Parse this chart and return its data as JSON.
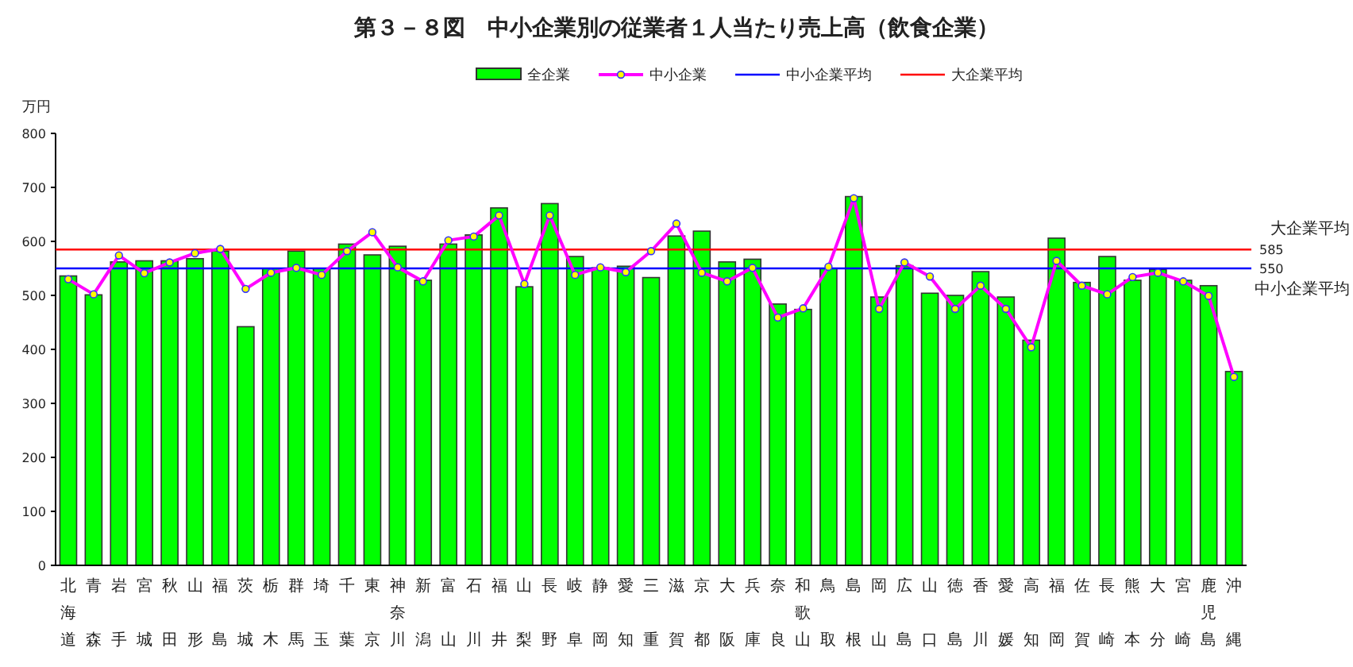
{
  "chart_data": {
    "type": "bar",
    "title": "第３－８図　中小企業別の従業者１人当たり売上高（飲食企業）",
    "ylabel": "万円",
    "categories": [
      "北海道",
      "青森",
      "岩手",
      "宮城",
      "秋田",
      "山形",
      "福島",
      "茨城",
      "栃木",
      "群馬",
      "埼玉",
      "千葉",
      "東京",
      "神奈川",
      "新潟",
      "富山",
      "石川",
      "福井",
      "山梨",
      "長野",
      "岐阜",
      "静岡",
      "愛知",
      "三重",
      "滋賀",
      "京都",
      "大阪",
      "兵庫",
      "奈良",
      "和歌山",
      "鳥取",
      "島根",
      "岡山",
      "広島",
      "山口",
      "徳島",
      "香川",
      "愛媛",
      "高知",
      "福岡",
      "佐賀",
      "長崎",
      "熊本",
      "大分",
      "宮崎",
      "鹿児島",
      "沖縄"
    ],
    "series": [
      {
        "name": "全企業",
        "color": "#00ff00",
        "values": [
          536,
          501,
          562,
          564,
          564,
          568,
          582,
          442,
          550,
          582,
          550,
          595,
          575,
          591,
          528,
          595,
          612,
          662,
          516,
          670,
          572,
          551,
          554,
          533,
          610,
          619,
          562,
          567,
          484,
          474,
          550,
          683,
          497,
          555,
          504,
          500,
          544,
          497,
          417,
          606,
          524,
          572,
          528,
          548,
          528,
          518,
          359
        ]
      },
      {
        "name": "中小企業",
        "type": "line",
        "color": "#ff00ff",
        "marker": "circle",
        "values": [
          530,
          502,
          574,
          541,
          561,
          578,
          586,
          512,
          542,
          551,
          538,
          582,
          617,
          552,
          526,
          602,
          609,
          648,
          521,
          648,
          538,
          552,
          543,
          582,
          633,
          542,
          526,
          551,
          459,
          476,
          553,
          680,
          475,
          561,
          535,
          475,
          518,
          475,
          404,
          564,
          518,
          502,
          534,
          542,
          526,
          499,
          349
        ]
      }
    ],
    "ref_lines": [
      {
        "axis": "y",
        "value": 585,
        "label": "大企業平均",
        "color": "#ff0000"
      },
      {
        "axis": "y",
        "value": 550,
        "label": "中小企業平均",
        "color": "#0000ff"
      }
    ],
    "annotations": [
      "585",
      "550"
    ],
    "ylim": [
      0,
      800
    ],
    "yticks": [
      0,
      100,
      200,
      300,
      400,
      500,
      600,
      700,
      800
    ],
    "grid": false,
    "legend": "top"
  }
}
